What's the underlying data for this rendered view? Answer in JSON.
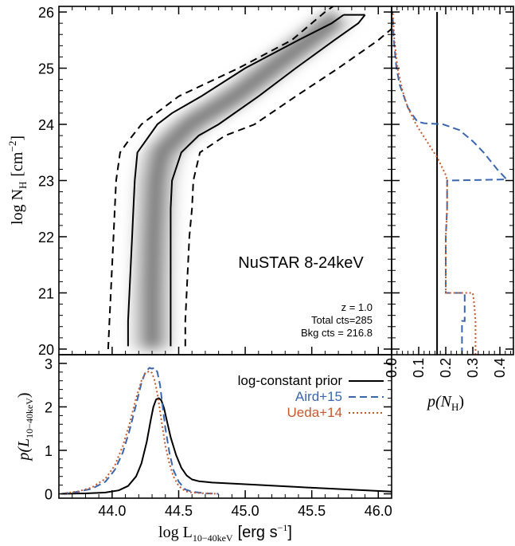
{
  "colors": {
    "aird": "#3a66b0",
    "ueda": "#c8582a",
    "black": "#000000",
    "band_dark": "#8c8c8c"
  },
  "chart_data": [
    {
      "type": "heatmap",
      "panel": "main",
      "xlim": [
        43.6,
        46.1
      ],
      "ylim": [
        19.9,
        26.1
      ],
      "ylabel_main": "log N",
      "ylabel_sub": "H",
      "ylabel_unit": "[cm",
      "ylabel_exp": "−2",
      "ylabel_close": "]",
      "yticks": [
        20,
        21,
        22,
        23,
        24,
        25,
        26
      ],
      "ytick_labels": [
        "20",
        "21",
        "22",
        "23",
        "24",
        "25",
        "26"
      ],
      "annotation_title": "NuSTAR 8-24keV",
      "annotation_lines": [
        "z =  1.0",
        "Total cts=285",
        "Bkg cts = 216.8"
      ],
      "ridge": {
        "y": [
          20.0,
          21.0,
          22.0,
          23.0,
          23.5,
          24.0,
          24.5,
          25.0,
          25.5,
          25.9
        ],
        "x": [
          44.3,
          44.3,
          44.31,
          44.33,
          44.37,
          44.58,
          44.92,
          45.2,
          45.48,
          45.7
        ]
      },
      "contour_inner": {
        "left": {
          "y": [
            20.05,
            20.5,
            21.0,
            21.5,
            22.0,
            22.5,
            23.0,
            23.5,
            24.0,
            24.2,
            24.5,
            25.0,
            25.5,
            25.8,
            25.95
          ],
          "x": [
            44.12,
            44.12,
            44.13,
            44.14,
            44.15,
            44.16,
            44.17,
            44.19,
            44.34,
            44.45,
            44.67,
            45.0,
            45.4,
            45.65,
            45.74
          ]
        },
        "right": {
          "y": [
            20.05,
            20.5,
            21.0,
            21.5,
            22.0,
            22.5,
            23.0,
            23.5,
            23.8,
            24.0,
            24.5,
            25.0,
            25.5,
            25.8,
            25.95
          ],
          "x": [
            44.44,
            44.44,
            44.44,
            44.44,
            44.44,
            44.44,
            44.45,
            44.52,
            44.65,
            44.8,
            45.1,
            45.38,
            45.67,
            45.85,
            45.9
          ]
        },
        "cap": {
          "x": [
            45.74,
            45.9
          ],
          "y": [
            25.95,
            25.95
          ]
        }
      },
      "contour_outer": {
        "left": {
          "y": [
            20.0,
            20.5,
            21.0,
            21.5,
            22.0,
            22.5,
            23.0,
            23.5,
            23.7,
            24.0,
            24.5,
            25.0,
            25.5,
            26.0,
            26.1
          ],
          "x": [
            43.97,
            43.98,
            43.99,
            44.0,
            44.01,
            44.02,
            44.03,
            44.06,
            44.12,
            44.22,
            44.5,
            44.95,
            45.35,
            45.6,
            45.66
          ]
        },
        "right": {
          "y": [
            20.05,
            20.5,
            21.0,
            21.5,
            22.0,
            22.5,
            23.0,
            23.5,
            23.8,
            24.0,
            24.5,
            25.0,
            25.5,
            25.7
          ],
          "x": [
            44.55,
            44.55,
            44.56,
            44.57,
            44.58,
            44.6,
            44.61,
            44.66,
            44.85,
            45.07,
            45.38,
            45.7,
            46.0,
            46.1
          ]
        }
      }
    },
    {
      "type": "line",
      "panel": "right",
      "xlim": [
        0.0,
        0.45
      ],
      "ylim": [
        19.9,
        26.1
      ],
      "xticks": [
        0.0,
        0.1,
        0.2,
        0.3,
        0.4
      ],
      "xtick_labels": [
        "0.0",
        "0.1",
        "0.2",
        "0.3",
        "0.4"
      ],
      "xlabel_main": "p(N",
      "xlabel_sub": "H",
      "xlabel_close": ")",
      "series": [
        {
          "style": "solid",
          "color": "#000000",
          "y": [
            19.9,
            26.0
          ],
          "x": [
            0.168,
            0.168
          ]
        },
        {
          "style": "dashed",
          "color": "#3a66b0",
          "y": [
            19.9,
            20.0,
            20.5,
            20.5,
            21.0,
            21.0,
            21.5,
            22.0,
            22.5,
            23.0,
            23.0,
            23.02,
            23.2,
            23.5,
            23.7,
            23.9,
            24.0,
            24.02,
            24.05,
            24.15,
            24.3,
            24.7,
            25.0,
            25.5,
            26.0
          ],
          "x": [
            0.26,
            0.26,
            0.26,
            0.27,
            0.27,
            0.2,
            0.2,
            0.2,
            0.205,
            0.205,
            0.21,
            0.425,
            0.39,
            0.34,
            0.3,
            0.25,
            0.19,
            0.12,
            0.095,
            0.08,
            0.06,
            0.03,
            0.018,
            0.008,
            0.003
          ]
        },
        {
          "style": "dotted",
          "color": "#c8582a",
          "y": [
            19.9,
            20.0,
            20.5,
            20.8,
            21.0,
            21.0,
            21.5,
            22.0,
            22.5,
            23.0,
            23.1,
            23.4,
            23.7,
            24.0,
            24.3,
            24.6,
            25.0,
            25.5,
            26.0
          ],
          "x": [
            0.31,
            0.31,
            0.31,
            0.305,
            0.3,
            0.2,
            0.2,
            0.2,
            0.205,
            0.205,
            0.2,
            0.17,
            0.13,
            0.09,
            0.06,
            0.04,
            0.022,
            0.01,
            0.004
          ]
        }
      ]
    },
    {
      "type": "line",
      "panel": "bottom",
      "xlim": [
        43.6,
        46.1
      ],
      "ylim": [
        -0.1,
        3.2
      ],
      "xticks": [
        44.0,
        44.5,
        45.0,
        45.5,
        46.0
      ],
      "xtick_labels": [
        "44.0",
        "44.5",
        "45.0",
        "45.5",
        "46.0"
      ],
      "yticks": [
        0,
        1,
        2,
        3
      ],
      "ytick_labels": [
        "0",
        "1",
        "2",
        "3"
      ],
      "xlabel_main": "log L",
      "xlabel_sub": "10−40keV",
      "xlabel_unit": "[erg s",
      "xlabel_exp": "−1",
      "xlabel_close": "]",
      "ylabel_main": "p(L",
      "ylabel_sub": "10−40keV",
      "ylabel_close": ")",
      "legend_position": "top-right",
      "series": [
        {
          "name": "log-constant prior",
          "style": "solid",
          "color": "#000000",
          "x": [
            43.62,
            43.8,
            43.95,
            44.05,
            44.12,
            44.18,
            44.22,
            44.26,
            44.29,
            44.31,
            44.33,
            44.35,
            44.37,
            44.39,
            44.41,
            44.44,
            44.48,
            44.52,
            44.56,
            44.6,
            44.65,
            44.75,
            45.0,
            45.5,
            46.1
          ],
          "y": [
            0.0,
            0.01,
            0.03,
            0.08,
            0.18,
            0.4,
            0.7,
            1.2,
            1.7,
            2.0,
            2.17,
            2.2,
            2.15,
            1.97,
            1.7,
            1.3,
            0.9,
            0.6,
            0.42,
            0.33,
            0.29,
            0.26,
            0.22,
            0.14,
            0.05
          ]
        },
        {
          "name": "Aird+15",
          "style": "dashed",
          "color": "#3a66b0",
          "x": [
            43.62,
            43.75,
            43.85,
            43.95,
            44.02,
            44.08,
            44.13,
            44.18,
            44.22,
            44.25,
            44.28,
            44.3,
            44.32,
            44.34,
            44.36,
            44.38,
            44.4,
            44.43,
            44.46,
            44.5,
            44.55,
            44.6,
            44.7,
            44.8
          ],
          "y": [
            0.0,
            0.05,
            0.12,
            0.28,
            0.55,
            0.95,
            1.45,
            2.05,
            2.55,
            2.8,
            2.9,
            2.88,
            2.9,
            2.8,
            2.5,
            2.0,
            1.5,
            0.95,
            0.55,
            0.28,
            0.1,
            0.05,
            0.01,
            0.0
          ]
        },
        {
          "name": "Ueda+14",
          "style": "dotted",
          "color": "#c8582a",
          "x": [
            43.62,
            43.75,
            43.85,
            43.95,
            44.02,
            44.08,
            44.13,
            44.18,
            44.22,
            44.25,
            44.28,
            44.3,
            44.32,
            44.34,
            44.36,
            44.38,
            44.4,
            44.43,
            44.46,
            44.5,
            44.55,
            44.6,
            44.7,
            44.8
          ],
          "y": [
            0.0,
            0.06,
            0.15,
            0.35,
            0.65,
            1.1,
            1.6,
            2.2,
            2.6,
            2.78,
            2.82,
            2.78,
            2.6,
            2.3,
            1.9,
            1.5,
            1.1,
            0.7,
            0.4,
            0.18,
            0.06,
            0.03,
            0.01,
            0.0
          ]
        }
      ]
    }
  ]
}
